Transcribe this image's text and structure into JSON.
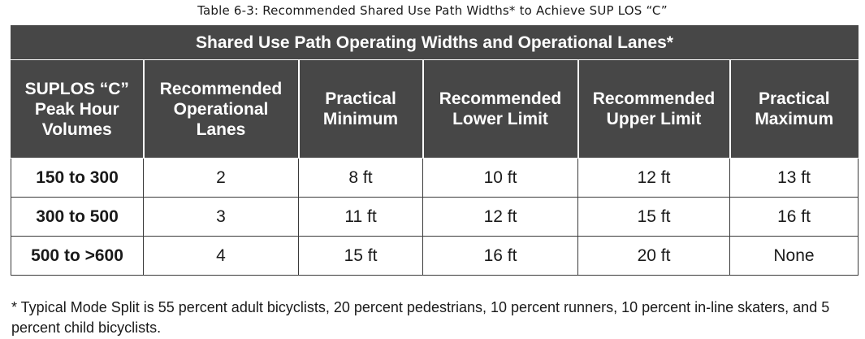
{
  "caption": "Table 6-3: Recommended Shared Use Path Widths* to Achieve SUP LOS “C”",
  "table": {
    "banner": "Shared Use Path Operating Widths and Operational Lanes*",
    "headers": [
      [
        "SUPLOS “C”",
        "Peak Hour",
        "Volumes"
      ],
      [
        "Recommended",
        "Operational",
        "Lanes"
      ],
      [
        "Practical",
        "Minimum"
      ],
      [
        "Recommended",
        "Lower Limit"
      ],
      [
        "Recommended",
        "Upper Limit"
      ],
      [
        "Practical",
        "Maximum"
      ]
    ],
    "rows": [
      [
        "150 to 300",
        "2",
        "8 ft",
        "10 ft",
        "12 ft",
        "13 ft"
      ],
      [
        "300 to 500",
        "3",
        "11 ft",
        "12 ft",
        "15 ft",
        "16 ft"
      ],
      [
        "500 to >600",
        "4",
        "15 ft",
        "16 ft",
        "20 ft",
        "None"
      ]
    ]
  },
  "footnote": "* Typical Mode Split is 55 percent adult bicyclists, 20 percent pedestrians, 10 percent runners, 10 percent in-line skaters, and 5 percent child bicyclists.",
  "colors": {
    "header_bg": "#474747",
    "header_text": "#ffffff",
    "border": "#3a3a3a"
  }
}
